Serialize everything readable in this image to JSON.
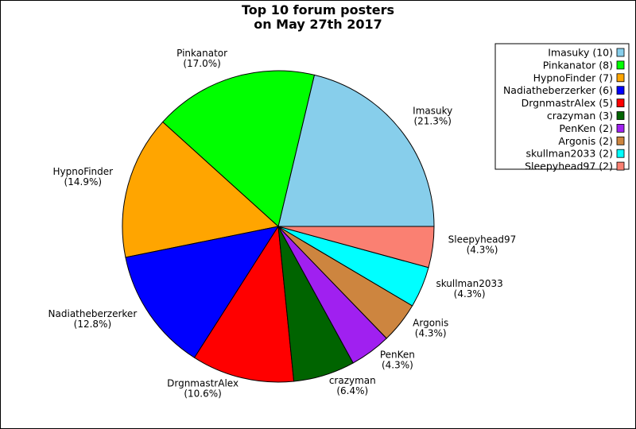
{
  "chart_data": {
    "type": "pie",
    "title": [
      "Top 10 forum posters",
      "on May 27th 2017"
    ],
    "legend_position": "top-right",
    "slices": [
      {
        "name": "Imasuky",
        "count": 10,
        "percent": "21.3%",
        "color": "#87CEEB",
        "legend": "Imasuky (10)"
      },
      {
        "name": "Pinkanator",
        "count": 8,
        "percent": "17.0%",
        "color": "#00FF00",
        "legend": "Pinkanator (8)"
      },
      {
        "name": "HypnoFinder",
        "count": 7,
        "percent": "14.9%",
        "color": "#FFA500",
        "legend": "HypnoFinder (7)"
      },
      {
        "name": "Nadiatheberzerker",
        "count": 6,
        "percent": "12.8%",
        "color": "#0000FF",
        "legend": "Nadiatheberzerker (6)"
      },
      {
        "name": "DrgnmastrAlex",
        "count": 5,
        "percent": "10.6%",
        "color": "#FF0000",
        "legend": "DrgnmastrAlex (5)"
      },
      {
        "name": "crazyman",
        "count": 3,
        "percent": "6.4%",
        "color": "#006400",
        "legend": "crazyman (3)"
      },
      {
        "name": "PenKen",
        "count": 2,
        "percent": "4.3%",
        "color": "#A020F0",
        "legend": "PenKen (2)"
      },
      {
        "name": "Argonis",
        "count": 2,
        "percent": "4.3%",
        "color": "#CD853F",
        "legend": "Argonis (2)"
      },
      {
        "name": "skullman2033",
        "count": 2,
        "percent": "4.3%",
        "color": "#00FFFF",
        "legend": "skullman2033 (2)"
      },
      {
        "name": "Sleepyhead97",
        "count": 2,
        "percent": "4.3%",
        "color": "#FA8072",
        "legend": "Sleepyhead97 (2)"
      }
    ]
  }
}
